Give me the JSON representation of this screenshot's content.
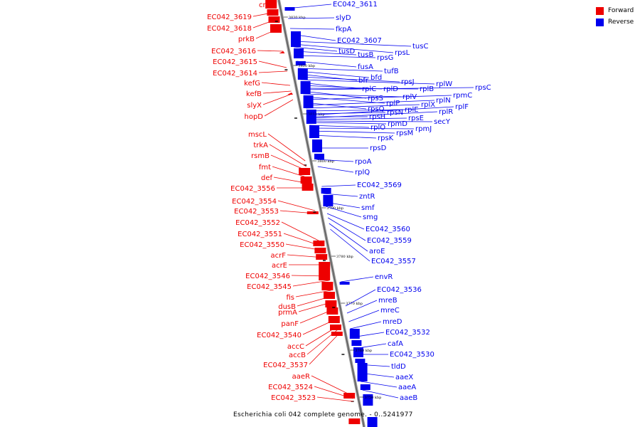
{
  "legend": {
    "forward_label": "Forward",
    "reverse_label": "Reverse",
    "forward_color": "#ee0000",
    "reverse_color": "#0000ee"
  },
  "caption": "Escherichia coli 042 complete genome. - 0..5241977",
  "axis_ticks": [
    "3830 kbp",
    "3820 kbp",
    "3810 kbp",
    "3800 kbp",
    "3790 kbp",
    "3780 kbp",
    "3770 kbp",
    "3760 kbp",
    "3750 kbp"
  ],
  "forward_genes": [
    "crp",
    "EC042_3619",
    "EC042_3618",
    "prkB",
    "EC042_3616",
    "EC042_3615",
    "EC042_3614",
    "kefG",
    "kefB",
    "slyX",
    "hopD",
    "mscL",
    "trkA",
    "rsmB",
    "fmt",
    "def",
    "EC042_3556",
    "EC042_3554",
    "EC042_3553",
    "EC042_3552",
    "EC042_3551",
    "EC042_3550",
    "acrF",
    "acrE",
    "EC042_3546",
    "EC042_3545",
    "fis",
    "dusB",
    "prmA",
    "panF",
    "EC042_3540",
    "accC",
    "accB",
    "EC042_3537",
    "aaeR",
    "EC042_3524",
    "EC042_3523"
  ],
  "reverse_genes": [
    "EC042_3611",
    "slyD",
    "fkpA",
    "EC042_3607",
    "tusC",
    "rpsL",
    "tusD",
    "tusB",
    "rpsG",
    "fusA",
    "tufB",
    "bfd",
    "bfr",
    "rpsJ",
    "rplW",
    "rplC",
    "rplD",
    "rplB",
    "rpsC",
    "rpsS",
    "rplV",
    "rplP",
    "rpmC",
    "rpsQ",
    "rplN",
    "rplX",
    "rplE",
    "rpsN",
    "rplF",
    "rpsH",
    "rplR",
    "rpsE",
    "secY",
    "rpmD",
    "rplO",
    "rpmJ",
    "rpsM",
    "rpsK",
    "rpsD",
    "rpoA",
    "rplQ",
    "EC042_3569",
    "zntR",
    "smf",
    "smg",
    "EC042_3560",
    "EC042_3559",
    "aroE",
    "EC042_3557",
    "envR",
    "EC042_3536",
    "mreB",
    "mreC",
    "mreD",
    "EC042_3532",
    "cafA",
    "EC042_3530",
    "tldD",
    "aaeX",
    "aaeA",
    "aaeB"
  ]
}
